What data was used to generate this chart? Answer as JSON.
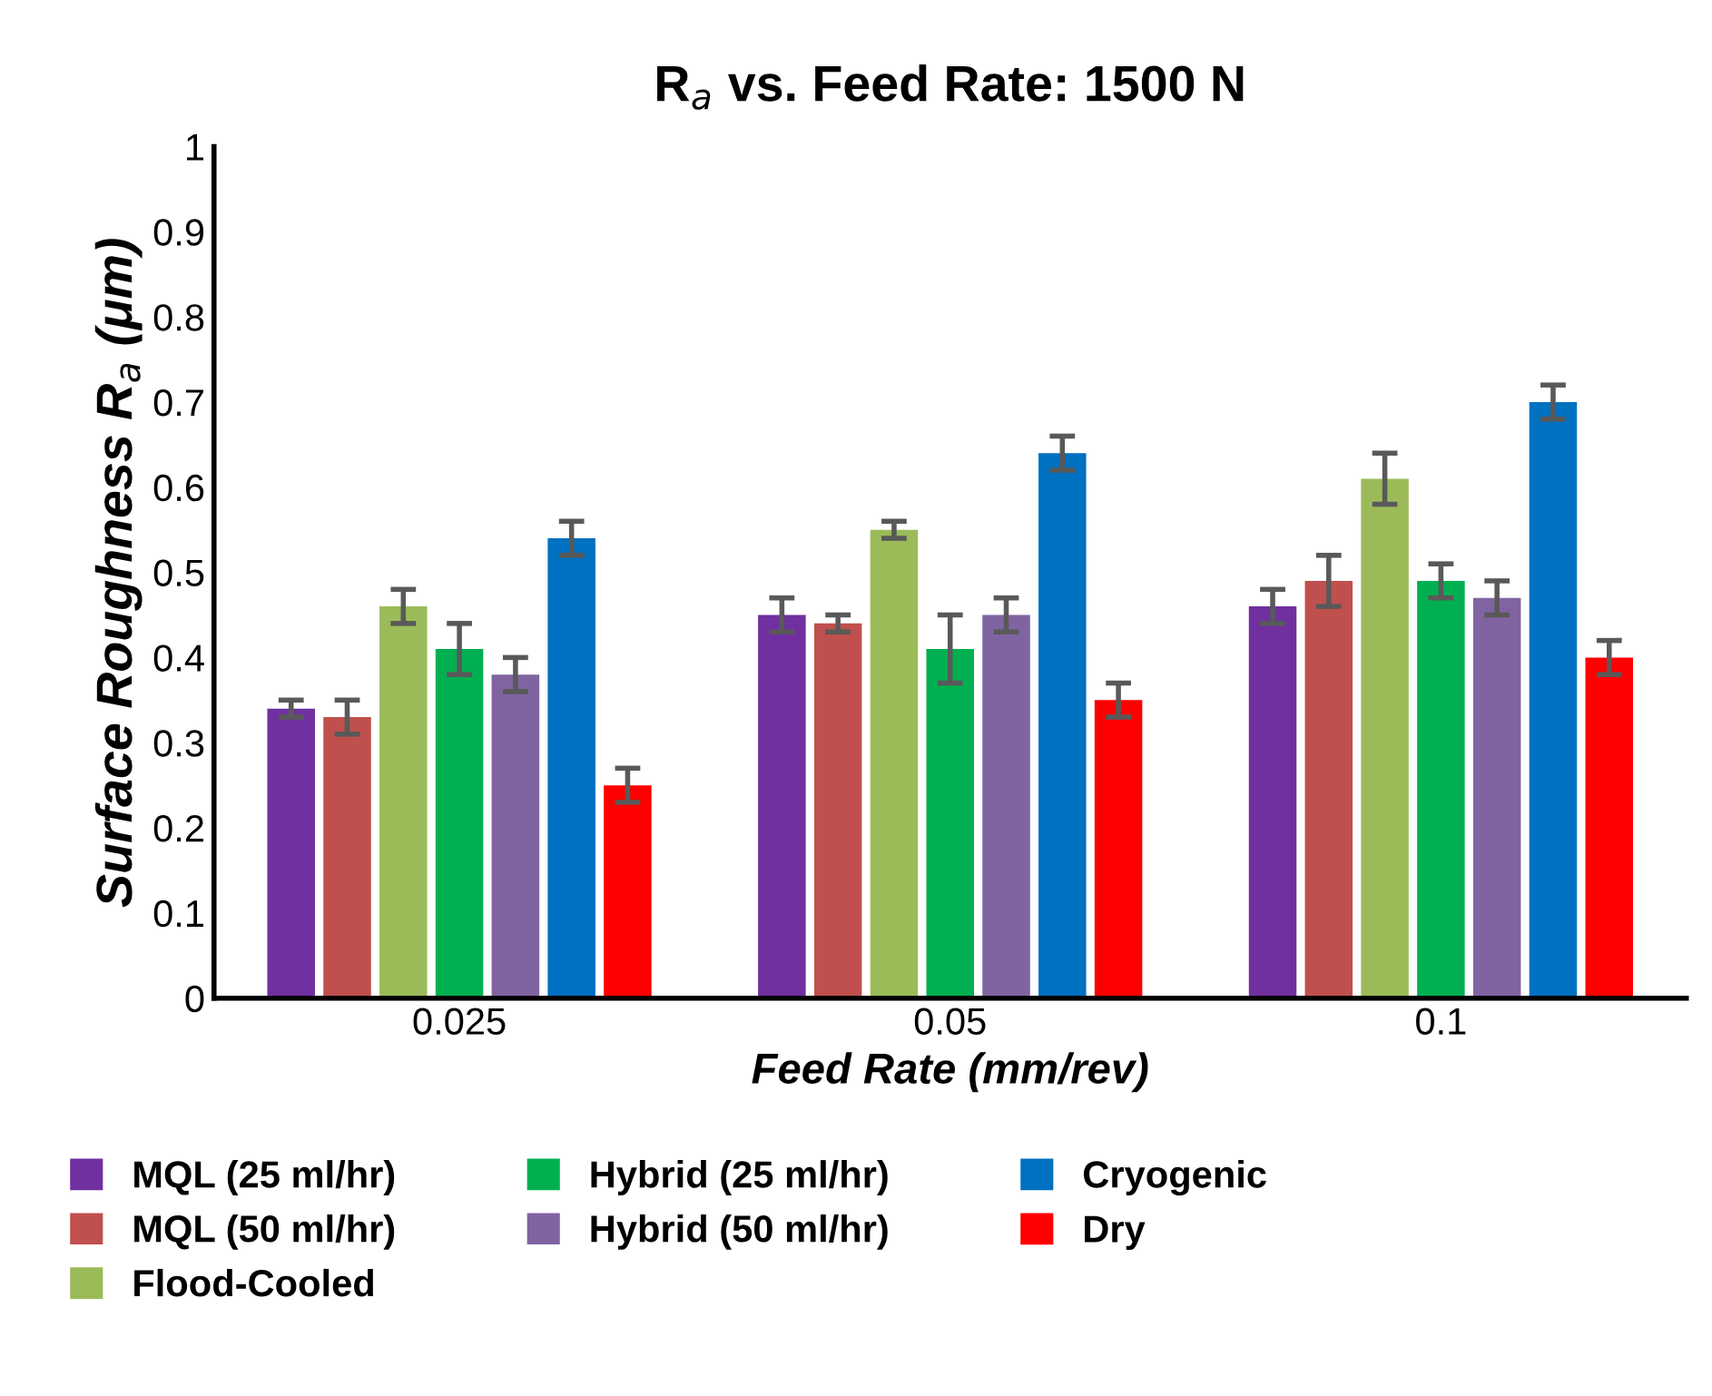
{
  "chart_data": {
    "type": "bar",
    "title": "R$_{a}$ vs. Feed Rate: 1500 N",
    "xlabel": "Feed Rate (mm/rev)",
    "ylabel": "Surface Roughness R$_{a}$ (μm)",
    "categories": [
      "0.025",
      "0.05",
      "0.1"
    ],
    "series": [
      {
        "name": "MQL (25 ml/hr)",
        "color": "#7030a0",
        "values": [
          0.34,
          0.45,
          0.46
        ],
        "errors": [
          0.01,
          0.02,
          0.02
        ]
      },
      {
        "name": "MQL (50 ml/hr)",
        "color": "#c0504d",
        "values": [
          0.33,
          0.44,
          0.49
        ],
        "errors": [
          0.02,
          0.01,
          0.03
        ]
      },
      {
        "name": "Flood-Cooled",
        "color": "#9bbb59",
        "values": [
          0.46,
          0.55,
          0.61
        ],
        "errors": [
          0.02,
          0.01,
          0.03
        ]
      },
      {
        "name": "Hybrid (25 ml/hr)",
        "color": "#00b050",
        "values": [
          0.41,
          0.41,
          0.49
        ],
        "errors": [
          0.03,
          0.04,
          0.02
        ]
      },
      {
        "name": "Hybrid (50 ml/hr)",
        "color": "#8064a2",
        "values": [
          0.38,
          0.45,
          0.47
        ],
        "errors": [
          0.02,
          0.02,
          0.02
        ]
      },
      {
        "name": "Cryogenic",
        "color": "#0070c0",
        "values": [
          0.54,
          0.64,
          0.7
        ],
        "errors": [
          0.02,
          0.02,
          0.02
        ]
      },
      {
        "name": "Dry",
        "color": "#ff0000",
        "values": [
          0.25,
          0.35,
          0.4
        ],
        "errors": [
          0.02,
          0.02,
          0.02
        ]
      }
    ],
    "ylim": [
      0,
      1
    ],
    "yticks": [
      0,
      0.1,
      0.2,
      0.3,
      0.4,
      0.5,
      0.6,
      0.7,
      0.8,
      0.9,
      1
    ],
    "grid": false,
    "legend": "bottom"
  }
}
